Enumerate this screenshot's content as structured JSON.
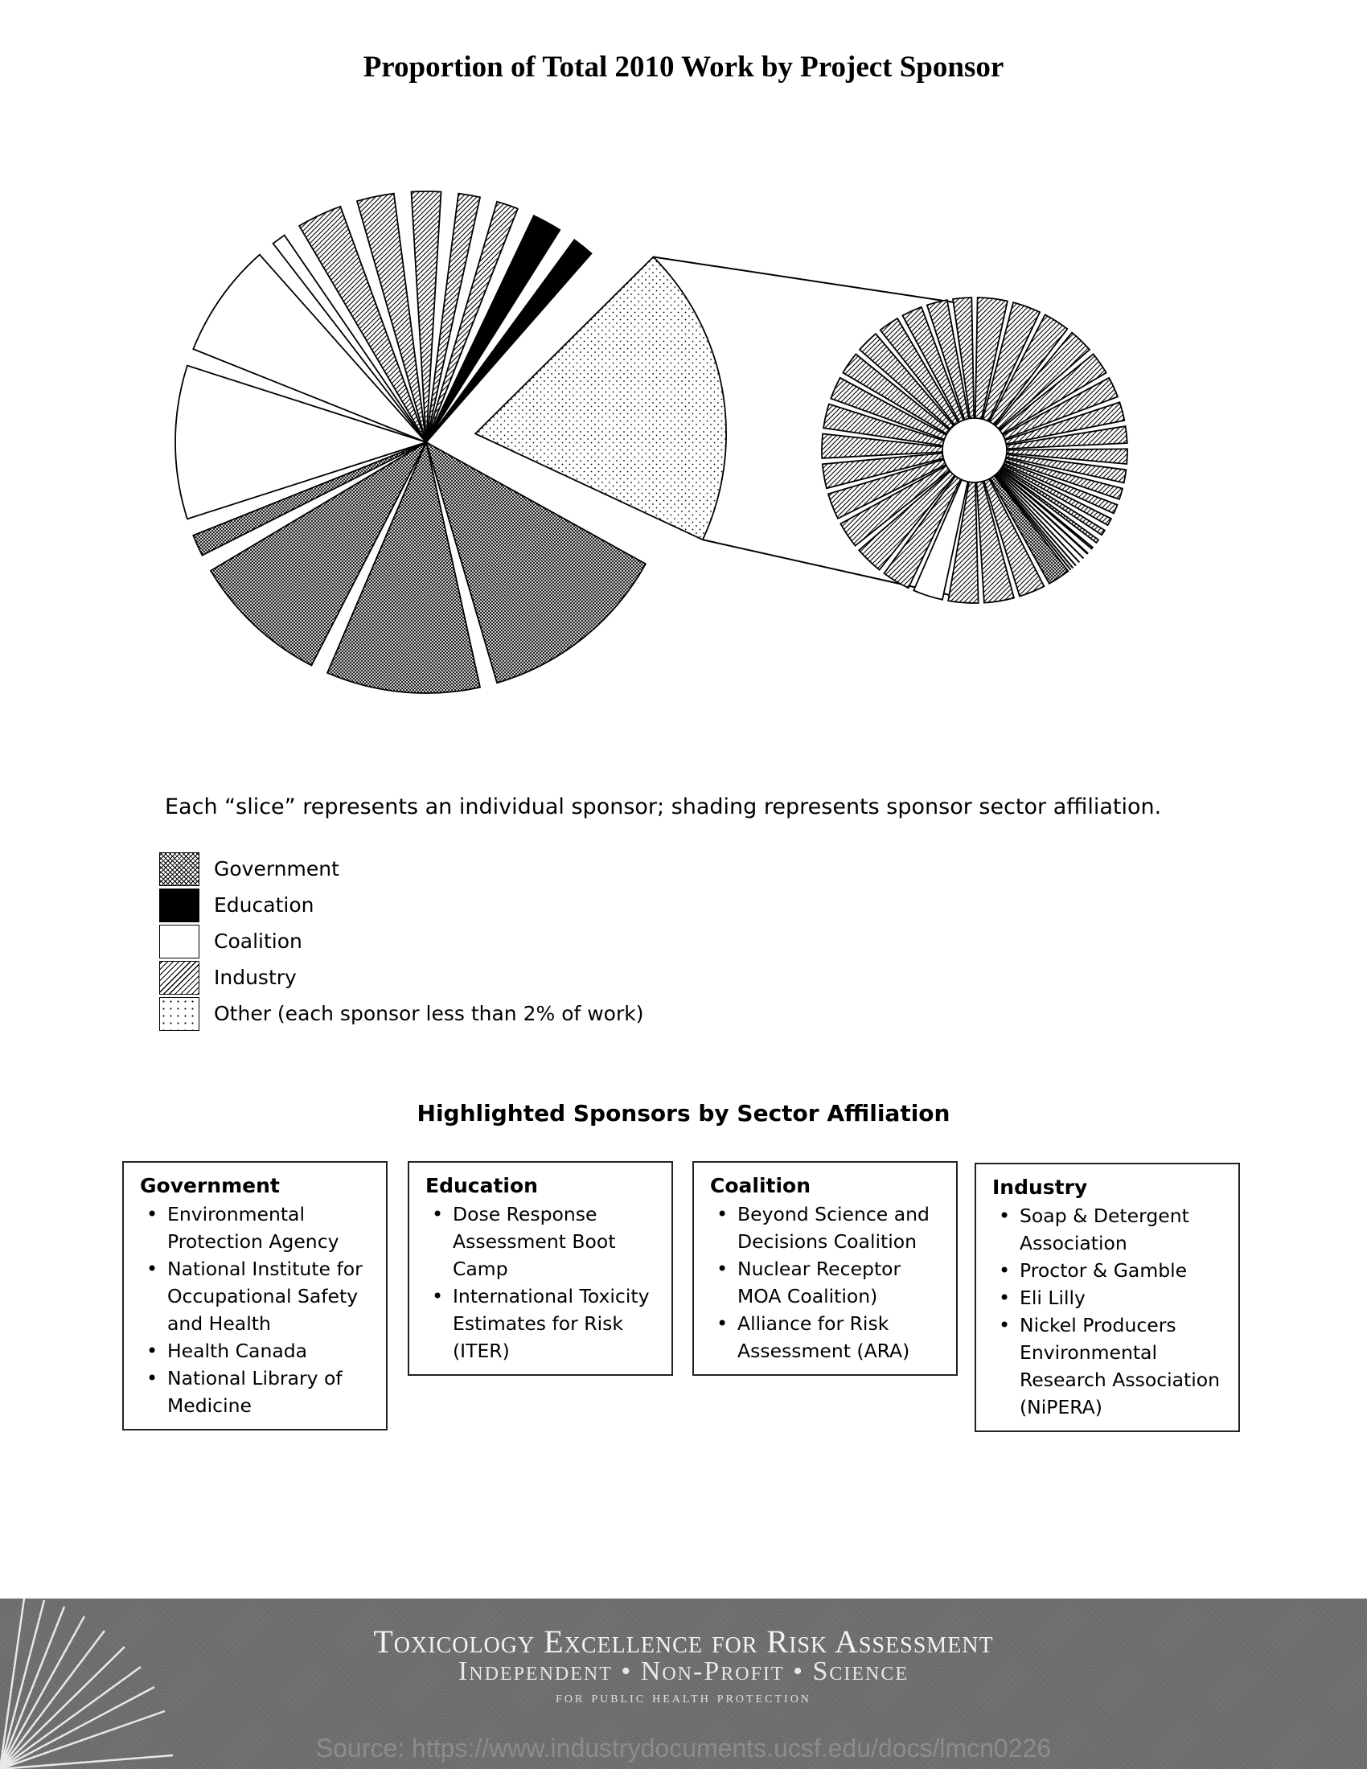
{
  "title": "Proportion of Total 2010 Work by Project Sponsor",
  "caption": "Each “slice” represents an individual sponsor; shading represents sponsor sector affiliation.",
  "legend": [
    {
      "label": "Government",
      "pattern": "government"
    },
    {
      "label": "Education",
      "pattern": "education"
    },
    {
      "label": "Coalition",
      "pattern": "coalition"
    },
    {
      "label": "Industry",
      "pattern": "industry"
    },
    {
      "label": "Other (each sponsor less than 2% of work)",
      "pattern": "other"
    }
  ],
  "colors": {
    "education": "#000000",
    "coalition": "#ffffff",
    "stroke": "#000000",
    "footer_bg": "#6e6e6e"
  },
  "chart_data": {
    "type": "pie",
    "title": "Proportion of Total 2010 Work by Project Sponsor",
    "main_pie": {
      "note": "Each slice is an individual sponsor; values are approximate percent of total work, read clockwise from 12 o'clock",
      "slices": [
        {
          "sector": "industry",
          "value": 3.5
        },
        {
          "sector": "industry",
          "value": 3.0
        },
        {
          "sector": "industry",
          "value": 2.5
        },
        {
          "sector": "industry",
          "value": 2.5
        },
        {
          "sector": "education",
          "value": 3.0
        },
        {
          "sector": "education",
          "value": 2.5
        },
        {
          "sector": "other",
          "value": 20.5
        },
        {
          "sector": "government",
          "value": 13.5
        },
        {
          "sector": "government",
          "value": 11.0
        },
        {
          "sector": "government",
          "value": 10.0
        },
        {
          "sector": "government",
          "value": 2.5
        },
        {
          "sector": "coalition",
          "value": 11.0
        },
        {
          "sector": "coalition",
          "value": 8.5
        },
        {
          "sector": "coalition",
          "value": 2.0
        },
        {
          "sector": "industry",
          "value": 4.0
        }
      ]
    },
    "other_breakdown": {
      "note": "Expanded view of the 'Other' slice; each slice is a sponsor with less than 2% of work",
      "slices": [
        {
          "sector": "industry",
          "value": 1.9
        },
        {
          "sector": "industry",
          "value": 1.8
        },
        {
          "sector": "industry",
          "value": 1.7
        },
        {
          "sector": "industry",
          "value": 1.6
        },
        {
          "sector": "industry",
          "value": 1.5
        },
        {
          "sector": "industry",
          "value": 1.4
        },
        {
          "sector": "industry",
          "value": 1.3
        },
        {
          "sector": "industry",
          "value": 1.2
        },
        {
          "sector": "industry",
          "value": 1.1
        },
        {
          "sector": "industry",
          "value": 1.0
        },
        {
          "sector": "industry",
          "value": 0.9
        },
        {
          "sector": "industry",
          "value": 0.8
        },
        {
          "sector": "industry",
          "value": 0.7
        },
        {
          "sector": "industry",
          "value": 0.6
        },
        {
          "sector": "industry",
          "value": 0.5
        },
        {
          "sector": "industry",
          "value": 0.4
        },
        {
          "sector": "industry",
          "value": 0.35
        },
        {
          "sector": "industry",
          "value": 0.3
        },
        {
          "sector": "industry",
          "value": 0.25
        },
        {
          "sector": "industry",
          "value": 0.2
        },
        {
          "sector": "education",
          "value": 0.15
        },
        {
          "sector": "education",
          "value": 0.15
        },
        {
          "sector": "government",
          "value": 1.5
        },
        {
          "sector": "industry",
          "value": 1.7
        },
        {
          "sector": "industry",
          "value": 1.9
        },
        {
          "sector": "industry",
          "value": 1.9
        },
        {
          "sector": "coalition",
          "value": 1.9
        },
        {
          "sector": "industry",
          "value": 1.8
        },
        {
          "sector": "industry",
          "value": 1.8
        },
        {
          "sector": "industry",
          "value": 1.7
        },
        {
          "sector": "industry",
          "value": 1.7
        },
        {
          "sector": "industry",
          "value": 1.6
        },
        {
          "sector": "industry",
          "value": 1.6
        },
        {
          "sector": "industry",
          "value": 1.6
        },
        {
          "sector": "industry",
          "value": 1.5
        },
        {
          "sector": "industry",
          "value": 1.5
        },
        {
          "sector": "industry",
          "value": 1.5
        },
        {
          "sector": "industry",
          "value": 1.4
        },
        {
          "sector": "industry",
          "value": 1.4
        },
        {
          "sector": "industry",
          "value": 1.4
        },
        {
          "sector": "industry",
          "value": 1.3
        }
      ]
    }
  },
  "section_heading": "Highlighted Sponsors by Sector Affiliation",
  "sectors": [
    {
      "title": "Government",
      "items": [
        "Environmental Protection Agency",
        "National Institute for Occupational Safety and Health",
        "Health Canada",
        "National Library of Medicine"
      ]
    },
    {
      "title": "Education",
      "items": [
        "Dose Response Assessment Boot Camp",
        "International Toxicity Estimates for Risk (ITER)"
      ]
    },
    {
      "title": "Coalition",
      "items": [
        "Beyond Science and Decisions Coalition",
        "Nuclear Receptor MOA Coalition)",
        "Alliance for Risk Assessment (ARA)"
      ]
    },
    {
      "title": "Industry",
      "items": [
        "Soap & Detergent Association",
        "Proctor & Gamble",
        "Eli Lilly",
        "Nickel Producers Environmental Research Association (NiPERA)"
      ]
    }
  ],
  "footer": {
    "organization": "Toxicology Excellence for Risk Assessment",
    "tagline": "Independent • Non-Profit • Science",
    "subline": "for public health protection",
    "source": "Source: https://www.industrydocuments.ucsf.edu/docs/lmcn0226"
  }
}
